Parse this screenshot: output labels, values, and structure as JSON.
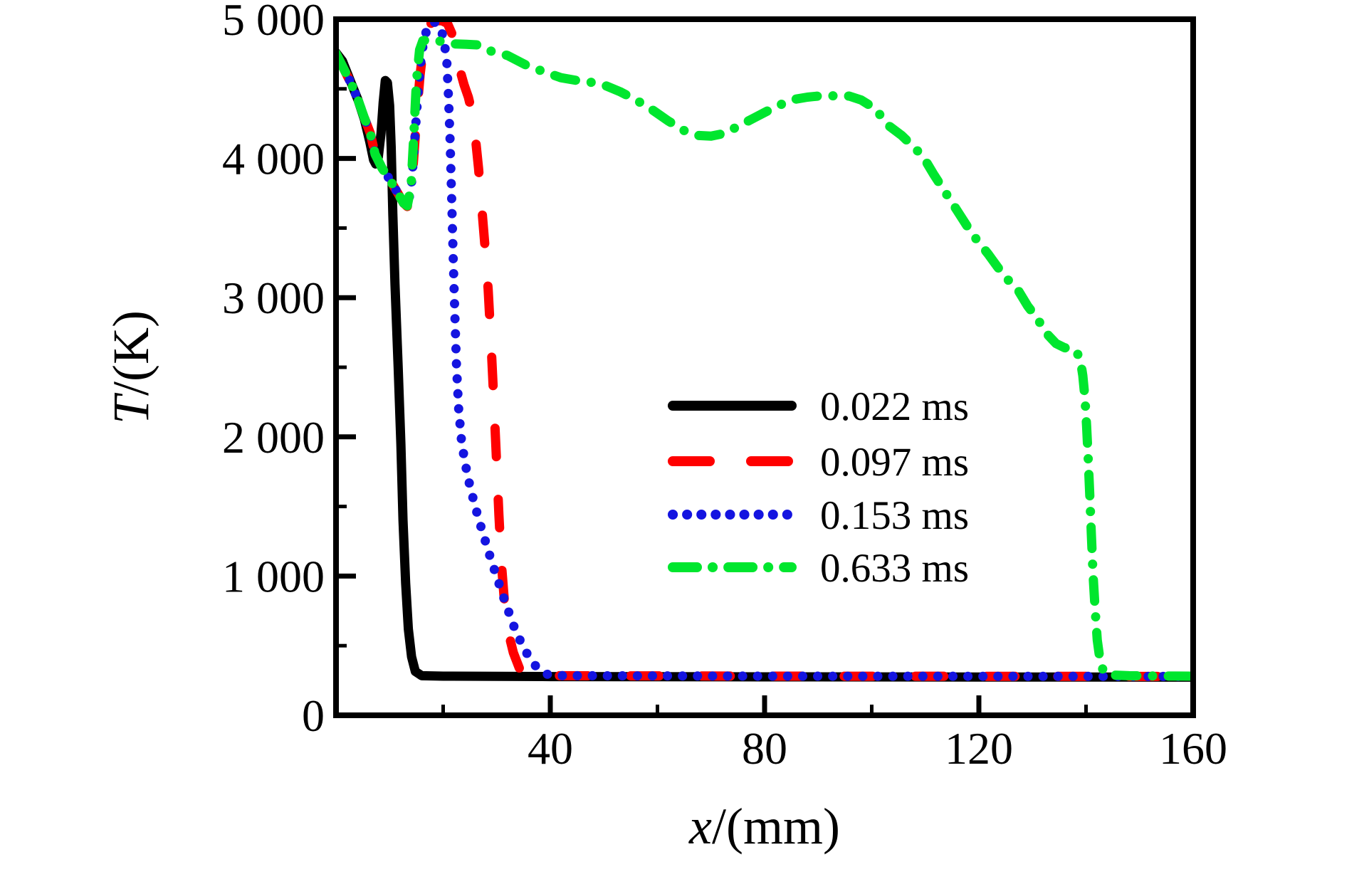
{
  "figure": {
    "background": "#ffffff",
    "frame_color": "#000000"
  },
  "chart_data": {
    "type": "line",
    "title": "",
    "xlabel_var": "x",
    "xlabel_unit": "/(mm)",
    "ylabel_var": "T",
    "ylabel_unit": "/(K)",
    "xlim": [
      0,
      160
    ],
    "ylim": [
      0,
      5000
    ],
    "grid": false,
    "legend_position": "inside-center-right",
    "x_ticks": {
      "major_values": [
        40,
        80,
        120,
        160
      ],
      "major_labels": [
        "40",
        "80",
        "120",
        "160"
      ],
      "minor_values": [
        20,
        60,
        100,
        140
      ]
    },
    "y_ticks": {
      "major_values": [
        0,
        1000,
        2000,
        3000,
        4000,
        5000
      ],
      "major_labels": [
        "0",
        "1 000",
        "2 000",
        "3 000",
        "4 000",
        "5 000"
      ],
      "minor_values": [
        500,
        1500,
        2500,
        3500,
        4500
      ]
    },
    "series": [
      {
        "name": "0.022 ms",
        "color": "#000000",
        "style": "solid",
        "points": [
          [
            0,
            4760
          ],
          [
            1.2,
            4700
          ],
          [
            2.8,
            4545
          ],
          [
            4.1,
            4420
          ],
          [
            5.3,
            4280
          ],
          [
            6.3,
            4120
          ],
          [
            7.0,
            3990
          ],
          [
            7.4,
            3960
          ],
          [
            7.9,
            4010
          ],
          [
            8.4,
            4180
          ],
          [
            8.8,
            4400
          ],
          [
            9.2,
            4560
          ],
          [
            9.6,
            4545
          ],
          [
            10.0,
            4380
          ],
          [
            10.3,
            4080
          ],
          [
            10.6,
            3600
          ],
          [
            11.0,
            3100
          ],
          [
            11.6,
            2500
          ],
          [
            12.1,
            1950
          ],
          [
            12.5,
            1400
          ],
          [
            13.0,
            950
          ],
          [
            13.5,
            620
          ],
          [
            14.1,
            420
          ],
          [
            14.8,
            315
          ],
          [
            16,
            284
          ],
          [
            20,
            281
          ],
          [
            40,
            278
          ],
          [
            80,
            276
          ],
          [
            120,
            275
          ],
          [
            160,
            274
          ]
        ]
      },
      {
        "name": "0.097 ms",
        "color": "#ff0000",
        "style": "dashed",
        "points": [
          [
            0,
            4755
          ],
          [
            1.5,
            4640
          ],
          [
            2.8,
            4540
          ],
          [
            4.1,
            4420
          ],
          [
            5.3,
            4290
          ],
          [
            6.4,
            4180
          ],
          [
            7.3,
            4030
          ],
          [
            8.6,
            3930
          ],
          [
            10,
            3850
          ],
          [
            11.7,
            3740
          ],
          [
            12.6,
            3680
          ],
          [
            13.3,
            3655
          ],
          [
            14.0,
            3760
          ],
          [
            14.5,
            4000
          ],
          [
            15.1,
            4330
          ],
          [
            15.7,
            4600
          ],
          [
            16.3,
            4800
          ],
          [
            17.0,
            4920
          ],
          [
            17.8,
            4975
          ],
          [
            18.8,
            4990
          ],
          [
            19.8,
            4988
          ],
          [
            20.8,
            4970
          ],
          [
            21.6,
            4900
          ],
          [
            22.3,
            4780
          ],
          [
            23.1,
            4640
          ],
          [
            23.9,
            4530
          ],
          [
            24.7,
            4440
          ],
          [
            25.4,
            4330
          ],
          [
            26.0,
            4160
          ],
          [
            26.6,
            3930
          ],
          [
            27.2,
            3650
          ],
          [
            27.8,
            3370
          ],
          [
            28.4,
            3060
          ],
          [
            28.9,
            2700
          ],
          [
            29.4,
            2310
          ],
          [
            29.9,
            1880
          ],
          [
            30.4,
            1440
          ],
          [
            30.9,
            1080
          ],
          [
            31.5,
            790
          ],
          [
            32.2,
            590
          ],
          [
            33.1,
            450
          ],
          [
            34.2,
            340
          ],
          [
            35.4,
            295
          ],
          [
            38,
            285
          ],
          [
            80,
            281
          ],
          [
            120,
            280
          ],
          [
            160,
            279
          ]
        ]
      },
      {
        "name": "0.153 ms",
        "color": "#1414e0",
        "style": "dotted",
        "points": [
          [
            0,
            4755
          ],
          [
            1.5,
            4640
          ],
          [
            2.8,
            4540
          ],
          [
            4.1,
            4420
          ],
          [
            5.3,
            4290
          ],
          [
            6.4,
            4180
          ],
          [
            7.3,
            4030
          ],
          [
            8.6,
            3930
          ],
          [
            10,
            3850
          ],
          [
            11.7,
            3740
          ],
          [
            12.6,
            3680
          ],
          [
            13.3,
            3655
          ],
          [
            14.0,
            3780
          ],
          [
            14.6,
            4080
          ],
          [
            15.2,
            4420
          ],
          [
            15.8,
            4680
          ],
          [
            16.4,
            4860
          ],
          [
            17.2,
            4950
          ],
          [
            18.0,
            4980
          ],
          [
            18.9,
            4975
          ],
          [
            19.6,
            4930
          ],
          [
            20.2,
            4840
          ],
          [
            20.7,
            4680
          ],
          [
            21.0,
            4440
          ],
          [
            21.3,
            4120
          ],
          [
            21.6,
            3700
          ],
          [
            21.9,
            3250
          ],
          [
            22.2,
            2850
          ],
          [
            22.5,
            2500
          ],
          [
            22.9,
            2200
          ],
          [
            23.4,
            1980
          ],
          [
            24.0,
            1830
          ],
          [
            24.8,
            1680
          ],
          [
            25.7,
            1540
          ],
          [
            26.7,
            1400
          ],
          [
            27.8,
            1260
          ],
          [
            29.0,
            1110
          ],
          [
            30.3,
            960
          ],
          [
            31.7,
            800
          ],
          [
            33.2,
            640
          ],
          [
            34.8,
            500
          ],
          [
            36.3,
            400
          ],
          [
            37.8,
            330
          ],
          [
            39.4,
            295
          ],
          [
            42,
            285
          ],
          [
            80,
            281
          ],
          [
            120,
            280
          ],
          [
            160,
            279
          ]
        ]
      },
      {
        "name": "0.633 ms",
        "color": "#00e62e",
        "style": "dashdot",
        "points": [
          [
            0,
            4755
          ],
          [
            1.5,
            4640
          ],
          [
            2.8,
            4540
          ],
          [
            4.1,
            4420
          ],
          [
            5.3,
            4290
          ],
          [
            6.4,
            4180
          ],
          [
            7.3,
            4030
          ],
          [
            8.6,
            3930
          ],
          [
            10,
            3850
          ],
          [
            11.7,
            3740
          ],
          [
            12.6,
            3680
          ],
          [
            13.3,
            3660
          ],
          [
            14.0,
            3800
          ],
          [
            14.5,
            4150
          ],
          [
            15.0,
            4550
          ],
          [
            15.6,
            4780
          ],
          [
            16.2,
            4845
          ],
          [
            17.5,
            4855
          ],
          [
            18.7,
            4850
          ],
          [
            20.5,
            4830
          ],
          [
            22.3,
            4822
          ],
          [
            24.3,
            4820
          ],
          [
            26.3,
            4816
          ],
          [
            29,
            4770
          ],
          [
            32,
            4740
          ],
          [
            35.6,
            4668
          ],
          [
            39.2,
            4617
          ],
          [
            42,
            4580
          ],
          [
            45,
            4560
          ],
          [
            48,
            4545
          ],
          [
            50.5,
            4520
          ],
          [
            53,
            4480
          ],
          [
            56,
            4420
          ],
          [
            59,
            4350
          ],
          [
            62,
            4270
          ],
          [
            65,
            4200
          ],
          [
            67.5,
            4165
          ],
          [
            70,
            4160
          ],
          [
            72.5,
            4180
          ],
          [
            75,
            4230
          ],
          [
            78,
            4290
          ],
          [
            81,
            4350
          ],
          [
            83.5,
            4395
          ],
          [
            85.2,
            4422
          ],
          [
            88,
            4440
          ],
          [
            90.5,
            4450
          ],
          [
            93.2,
            4450
          ],
          [
            95.8,
            4448
          ],
          [
            98,
            4420
          ],
          [
            100.7,
            4356
          ],
          [
            103,
            4240
          ],
          [
            105.6,
            4165
          ],
          [
            108.3,
            4065
          ],
          [
            109.8,
            4000
          ],
          [
            111.5,
            3890
          ],
          [
            113.5,
            3770
          ],
          [
            115.7,
            3640
          ],
          [
            117.7,
            3520
          ],
          [
            119.7,
            3410
          ],
          [
            121.7,
            3315
          ],
          [
            123.5,
            3220
          ],
          [
            125.4,
            3130
          ],
          [
            127.3,
            3055
          ],
          [
            129.1,
            2940
          ],
          [
            130.9,
            2850
          ],
          [
            132.7,
            2740
          ],
          [
            134.4,
            2670
          ],
          [
            136,
            2640
          ],
          [
            137.9,
            2630
          ],
          [
            138.9,
            2565
          ],
          [
            139.4,
            2440
          ],
          [
            139.8,
            2280
          ],
          [
            140.1,
            2080
          ],
          [
            140.4,
            1850
          ],
          [
            140.7,
            1580
          ],
          [
            141,
            1300
          ],
          [
            141.3,
            1020
          ],
          [
            141.7,
            760
          ],
          [
            142.1,
            540
          ],
          [
            142.6,
            400
          ],
          [
            143.2,
            320
          ],
          [
            144.2,
            290
          ],
          [
            148,
            284
          ],
          [
            154,
            282
          ],
          [
            160,
            281
          ]
        ]
      }
    ],
    "legend": {
      "items": [
        "0.022 ms",
        "0.097 ms",
        "0.153 ms",
        "0.633 ms"
      ]
    }
  }
}
